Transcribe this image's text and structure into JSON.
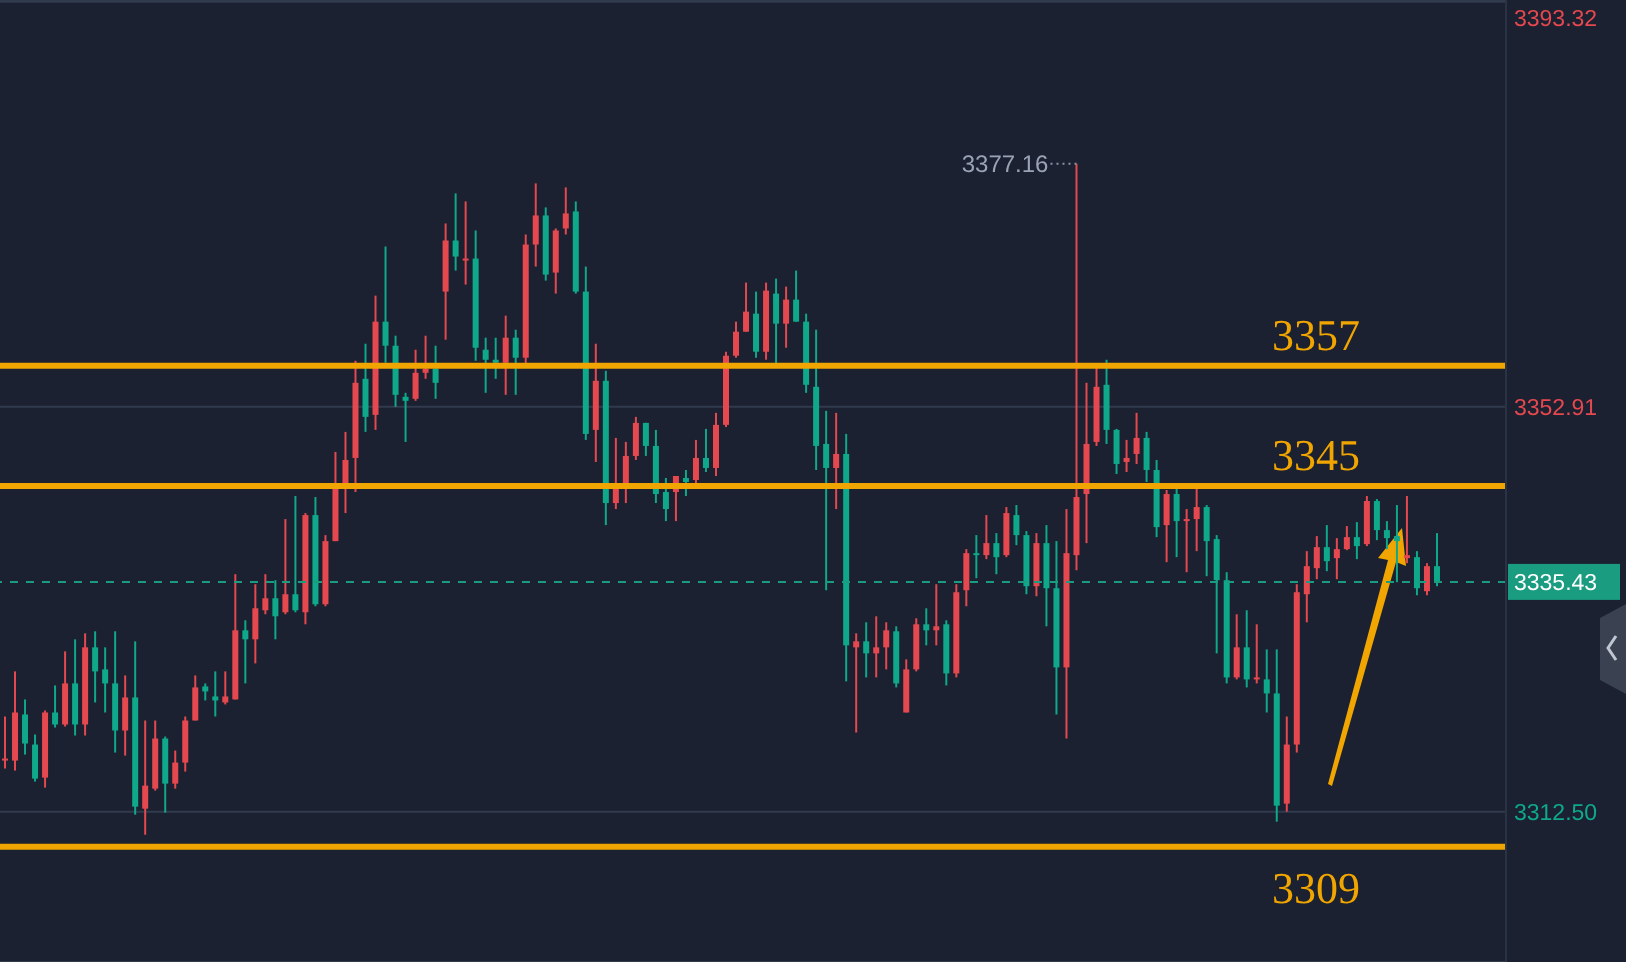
{
  "chart_data": {
    "type": "candlestick",
    "categories": [
      null,
      null,
      null,
      null,
      null,
      null,
      null,
      null,
      null,
      null,
      null,
      null,
      null,
      null,
      null,
      null,
      null,
      null,
      null,
      null,
      null,
      null,
      null,
      null,
      null,
      null,
      null,
      null,
      null,
      null,
      null,
      null,
      null,
      null,
      null,
      null,
      null,
      null,
      null,
      null,
      null,
      null,
      null,
      null,
      null,
      null,
      null,
      null,
      null,
      null,
      null,
      null,
      null,
      null,
      null,
      null,
      null,
      null,
      null,
      null,
      null,
      null,
      null,
      null,
      null,
      null,
      null,
      null,
      null,
      null,
      null,
      null,
      null,
      null,
      null,
      null,
      null,
      null,
      null,
      null,
      null,
      null,
      null,
      null,
      null,
      null,
      null,
      null,
      null,
      null,
      null,
      null,
      null,
      null,
      null,
      null,
      null,
      null,
      null,
      null,
      null,
      null,
      null,
      null,
      null,
      null,
      null,
      null,
      null,
      null,
      null,
      null,
      null,
      null,
      null,
      null,
      null,
      null,
      null,
      null,
      null,
      null,
      null,
      null,
      null,
      null,
      null,
      null,
      null,
      null,
      null,
      null,
      null,
      null,
      null,
      null,
      null,
      null,
      null,
      null,
      null,
      null,
      null,
      null
    ],
    "ohlc": [
      [
        3317.7,
        3322.0,
        3316.8,
        3317.8
      ],
      [
        3317.6,
        3326.5,
        3316.6,
        3322.4
      ],
      [
        3322.2,
        3323.7,
        3318.2,
        3319.3
      ],
      [
        3319.2,
        3320.2,
        3315.5,
        3315.8
      ],
      [
        3315.9,
        3322.6,
        3314.9,
        3322.4
      ],
      [
        3322.4,
        3325.1,
        3320.9,
        3321.2
      ],
      [
        3321.2,
        3328.5,
        3321.0,
        3325.3
      ],
      [
        3325.3,
        3329.7,
        3320.1,
        3321.2
      ],
      [
        3321.2,
        3330.3,
        3320.1,
        3328.9
      ],
      [
        3328.9,
        3330.5,
        3323.4,
        3326.5
      ],
      [
        3326.7,
        3328.9,
        3322.4,
        3325.3
      ],
      [
        3325.3,
        3330.5,
        3318.4,
        3320.6
      ],
      [
        3320.6,
        3326.1,
        3318.1,
        3323.9
      ],
      [
        3323.9,
        3329.5,
        3312.2,
        3313.0
      ],
      [
        3312.8,
        3321.6,
        3310.2,
        3315.1
      ],
      [
        3314.8,
        3321.6,
        3314.6,
        3319.8
      ],
      [
        3319.8,
        3320.0,
        3312.4,
        3315.3
      ],
      [
        3315.3,
        3318.6,
        3314.8,
        3317.4
      ],
      [
        3317.4,
        3322.0,
        3316.5,
        3321.6
      ],
      [
        3321.6,
        3326.1,
        3321.6,
        3324.9
      ],
      [
        3325.0,
        3325.3,
        3323.6,
        3324.5
      ],
      [
        3324.0,
        3326.5,
        3322.0,
        3323.6
      ],
      [
        3323.4,
        3326.5,
        3323.2,
        3324.0
      ],
      [
        3323.7,
        3336.2,
        3323.7,
        3330.6
      ],
      [
        3330.6,
        3331.6,
        3325.3,
        3329.7
      ],
      [
        3329.7,
        3335.2,
        3327.3,
        3332.8
      ],
      [
        3332.6,
        3336.2,
        3332.2,
        3333.8
      ],
      [
        3333.8,
        3335.6,
        3329.7,
        3332.0
      ],
      [
        3332.4,
        3341.7,
        3332.2,
        3334.2
      ],
      [
        3334.2,
        3344.0,
        3332.4,
        3332.6
      ],
      [
        3332.4,
        3342.3,
        3331.2,
        3342.1
      ],
      [
        3342.1,
        3343.9,
        3333.0,
        3333.2
      ],
      [
        3333.2,
        3340.1,
        3333.0,
        3339.5
      ],
      [
        3339.5,
        3348.4,
        3339.5,
        3345.0
      ],
      [
        3345.2,
        3350.4,
        3342.3,
        3347.6
      ],
      [
        3347.8,
        3357.5,
        3344.4,
        3355.3
      ],
      [
        3355.7,
        3359.2,
        3350.4,
        3351.9
      ],
      [
        3352.1,
        3364.0,
        3350.6,
        3361.4
      ],
      [
        3361.4,
        3368.9,
        3357.3,
        3359.0
      ],
      [
        3359.0,
        3360.0,
        3352.9,
        3354.1
      ],
      [
        3353.9,
        3354.3,
        3349.4,
        3353.5
      ],
      [
        3353.7,
        3358.6,
        3353.5,
        3356.3
      ],
      [
        3356.3,
        3360.0,
        3355.7,
        3356.7
      ],
      [
        3356.7,
        3359.0,
        3353.7,
        3355.3
      ],
      [
        3364.4,
        3371.2,
        3359.6,
        3369.5
      ],
      [
        3369.5,
        3374.2,
        3366.5,
        3367.9
      ],
      [
        3367.5,
        3373.4,
        3365.1,
        3367.7
      ],
      [
        3367.7,
        3370.5,
        3357.5,
        3358.8
      ],
      [
        3358.6,
        3359.8,
        3354.3,
        3357.6
      ],
      [
        3357.6,
        3359.8,
        3355.7,
        3357.3
      ],
      [
        3357.3,
        3362.0,
        3354.1,
        3359.8
      ],
      [
        3359.8,
        3360.6,
        3354.1,
        3357.8
      ],
      [
        3357.8,
        3370.1,
        3356.9,
        3369.1
      ],
      [
        3369.1,
        3375.2,
        3366.9,
        3372.0
      ],
      [
        3372.0,
        3372.8,
        3365.5,
        3366.1
      ],
      [
        3366.3,
        3370.7,
        3364.2,
        3370.5
      ],
      [
        3370.7,
        3374.8,
        3370.1,
        3372.2
      ],
      [
        3372.4,
        3373.4,
        3364.2,
        3364.4
      ],
      [
        3364.4,
        3366.9,
        3349.6,
        3350.2
      ],
      [
        3350.6,
        3359.2,
        3347.4,
        3355.5
      ],
      [
        3355.5,
        3356.5,
        3341.1,
        3343.3
      ],
      [
        3343.3,
        3349.8,
        3342.7,
        3345.2
      ],
      [
        3345.2,
        3349.4,
        3343.3,
        3348.0
      ],
      [
        3348.0,
        3351.9,
        3347.6,
        3351.3
      ],
      [
        3351.3,
        3351.3,
        3348.0,
        3349.0
      ],
      [
        3349.0,
        3350.6,
        3343.3,
        3344.2
      ],
      [
        3344.4,
        3345.8,
        3341.5,
        3342.7
      ],
      [
        3344.4,
        3346.0,
        3341.5,
        3346.0
      ],
      [
        3345.8,
        3346.6,
        3344.0,
        3345.4
      ],
      [
        3345.6,
        3349.6,
        3344.8,
        3347.8
      ],
      [
        3347.8,
        3350.7,
        3346.4,
        3346.8
      ],
      [
        3346.8,
        3352.3,
        3346.0,
        3351.1
      ],
      [
        3351.1,
        3358.4,
        3350.9,
        3358.0
      ],
      [
        3358.0,
        3361.4,
        3357.8,
        3360.4
      ],
      [
        3360.4,
        3365.3,
        3360.4,
        3362.4
      ],
      [
        3362.2,
        3364.4,
        3357.8,
        3358.4
      ],
      [
        3358.4,
        3365.3,
        3357.6,
        3364.5
      ],
      [
        3364.2,
        3365.7,
        3356.9,
        3361.2
      ],
      [
        3361.2,
        3364.9,
        3358.8,
        3363.6
      ],
      [
        3363.6,
        3366.5,
        3361.4,
        3361.4
      ],
      [
        3361.4,
        3362.2,
        3354.3,
        3355.1
      ],
      [
        3354.9,
        3360.6,
        3346.6,
        3349.0
      ],
      [
        3349.2,
        3352.5,
        3334.6,
        3346.8
      ],
      [
        3346.8,
        3352.3,
        3342.7,
        3348.2
      ],
      [
        3348.2,
        3350.2,
        3325.5,
        3329.1
      ],
      [
        3328.9,
        3330.3,
        3320.4,
        3329.5
      ],
      [
        3329.5,
        3331.4,
        3325.9,
        3328.3
      ],
      [
        3328.3,
        3332.0,
        3325.9,
        3328.9
      ],
      [
        3328.9,
        3331.4,
        3326.7,
        3330.6
      ],
      [
        3330.5,
        3331.0,
        3324.9,
        3325.3
      ],
      [
        3322.4,
        3327.7,
        3322.4,
        3326.7
      ],
      [
        3326.7,
        3331.8,
        3326.5,
        3331.2
      ],
      [
        3331.2,
        3332.8,
        3329.1,
        3330.6
      ],
      [
        3330.6,
        3335.2,
        3329.1,
        3331.0
      ],
      [
        3331.2,
        3331.6,
        3325.1,
        3326.3
      ],
      [
        3326.3,
        3335.2,
        3325.9,
        3334.4
      ],
      [
        3334.6,
        3338.7,
        3333.0,
        3338.3
      ],
      [
        3338.3,
        3340.1,
        3335.8,
        3338.1
      ],
      [
        3338.1,
        3342.1,
        3337.7,
        3339.3
      ],
      [
        3339.3,
        3340.3,
        3336.2,
        3337.9
      ],
      [
        3338.1,
        3342.9,
        3337.9,
        3342.3
      ],
      [
        3342.1,
        3343.1,
        3339.1,
        3340.1
      ],
      [
        3340.1,
        3340.5,
        3334.2,
        3335.0
      ],
      [
        3335.0,
        3340.3,
        3334.0,
        3339.3
      ],
      [
        3339.3,
        3341.1,
        3331.0,
        3334.8
      ],
      [
        3334.8,
        3339.5,
        3322.2,
        3326.9
      ],
      [
        3326.9,
        3342.7,
        3319.8,
        3338.3
      ],
      [
        3338.1,
        3377.16,
        3336.6,
        3343.9
      ],
      [
        3344.2,
        3355.3,
        3339.3,
        3349.2
      ],
      [
        3349.4,
        3357.1,
        3349.0,
        3354.9
      ],
      [
        3355.1,
        3357.6,
        3349.2,
        3350.6
      ],
      [
        3350.6,
        3350.7,
        3346.2,
        3347.2
      ],
      [
        3347.4,
        3349.6,
        3346.4,
        3347.8
      ],
      [
        3348.2,
        3352.3,
        3347.2,
        3349.8
      ],
      [
        3349.8,
        3350.4,
        3345.4,
        3346.6
      ],
      [
        3346.6,
        3347.6,
        3339.9,
        3340.9
      ],
      [
        3341.1,
        3344.6,
        3337.4,
        3344.2
      ],
      [
        3344.2,
        3344.8,
        3337.9,
        3341.5
      ],
      [
        3341.5,
        3342.7,
        3336.4,
        3341.7
      ],
      [
        3341.7,
        3344.8,
        3338.5,
        3342.9
      ],
      [
        3342.9,
        3343.1,
        3336.0,
        3339.5
      ],
      [
        3339.7,
        3340.1,
        3328.3,
        3335.6
      ],
      [
        3335.6,
        3336.4,
        3325.3,
        3325.9
      ],
      [
        3325.9,
        3332.2,
        3325.7,
        3328.9
      ],
      [
        3328.9,
        3332.6,
        3324.9,
        3325.7
      ],
      [
        3325.7,
        3331.2,
        3325.3,
        3325.9
      ],
      [
        3325.7,
        3328.7,
        3322.4,
        3324.3
      ],
      [
        3324.3,
        3328.7,
        3311.5,
        3313.1
      ],
      [
        3313.3,
        3322.0,
        3312.5,
        3319.2
      ],
      [
        3319.2,
        3335.2,
        3318.4,
        3334.4
      ],
      [
        3334.2,
        3338.5,
        3331.4,
        3337.0
      ],
      [
        3336.8,
        3340.0,
        3335.7,
        3338.9
      ],
      [
        3338.9,
        3341.1,
        3336.5,
        3337.5
      ],
      [
        3337.8,
        3339.8,
        3335.7,
        3338.7
      ],
      [
        3338.7,
        3341.0,
        3338.6,
        3339.9
      ],
      [
        3339.9,
        3341.4,
        3337.7,
        3339.0
      ],
      [
        3339.2,
        3344.0,
        3339.0,
        3343.5
      ],
      [
        3343.5,
        3343.7,
        3339.6,
        3340.6
      ],
      [
        3340.6,
        3341.5,
        3338.7,
        3339.8
      ],
      [
        3340.0,
        3343.1,
        3335.4,
        3339.5
      ],
      [
        3337.8,
        3344.0,
        3337.3,
        3338.1
      ],
      [
        3337.9,
        3338.5,
        3334.1,
        3334.8
      ],
      [
        3334.5,
        3337.3,
        3334.1,
        3337.0
      ],
      [
        3337.0,
        3340.3,
        3335.0,
        3335.43
      ]
    ],
    "ylim": [
      3297.5,
      3393.5
    ],
    "yticks": [
      3393.32,
      3352.91,
      {
        "value": 3312.5,
        "label": "3312.50"
      }
    ],
    "tick_labels": "y",
    "grid": "y",
    "ref_lines": [
      {
        "axis": "y",
        "value": 3335.43,
        "label": "3335.43",
        "color": "#1a9c80",
        "line_style": "dashed"
      },
      {
        "axis": "y",
        "value": 3357,
        "label": "3357",
        "color": "#f0a500"
      },
      {
        "axis": "y",
        "value": 3345,
        "label": "3345",
        "color": "#f0a500"
      },
      {
        "axis": "y",
        "value": 3309,
        "label": "3309",
        "color": "#f0a500"
      }
    ],
    "annotations": [
      "3377.16"
    ]
  }
}
